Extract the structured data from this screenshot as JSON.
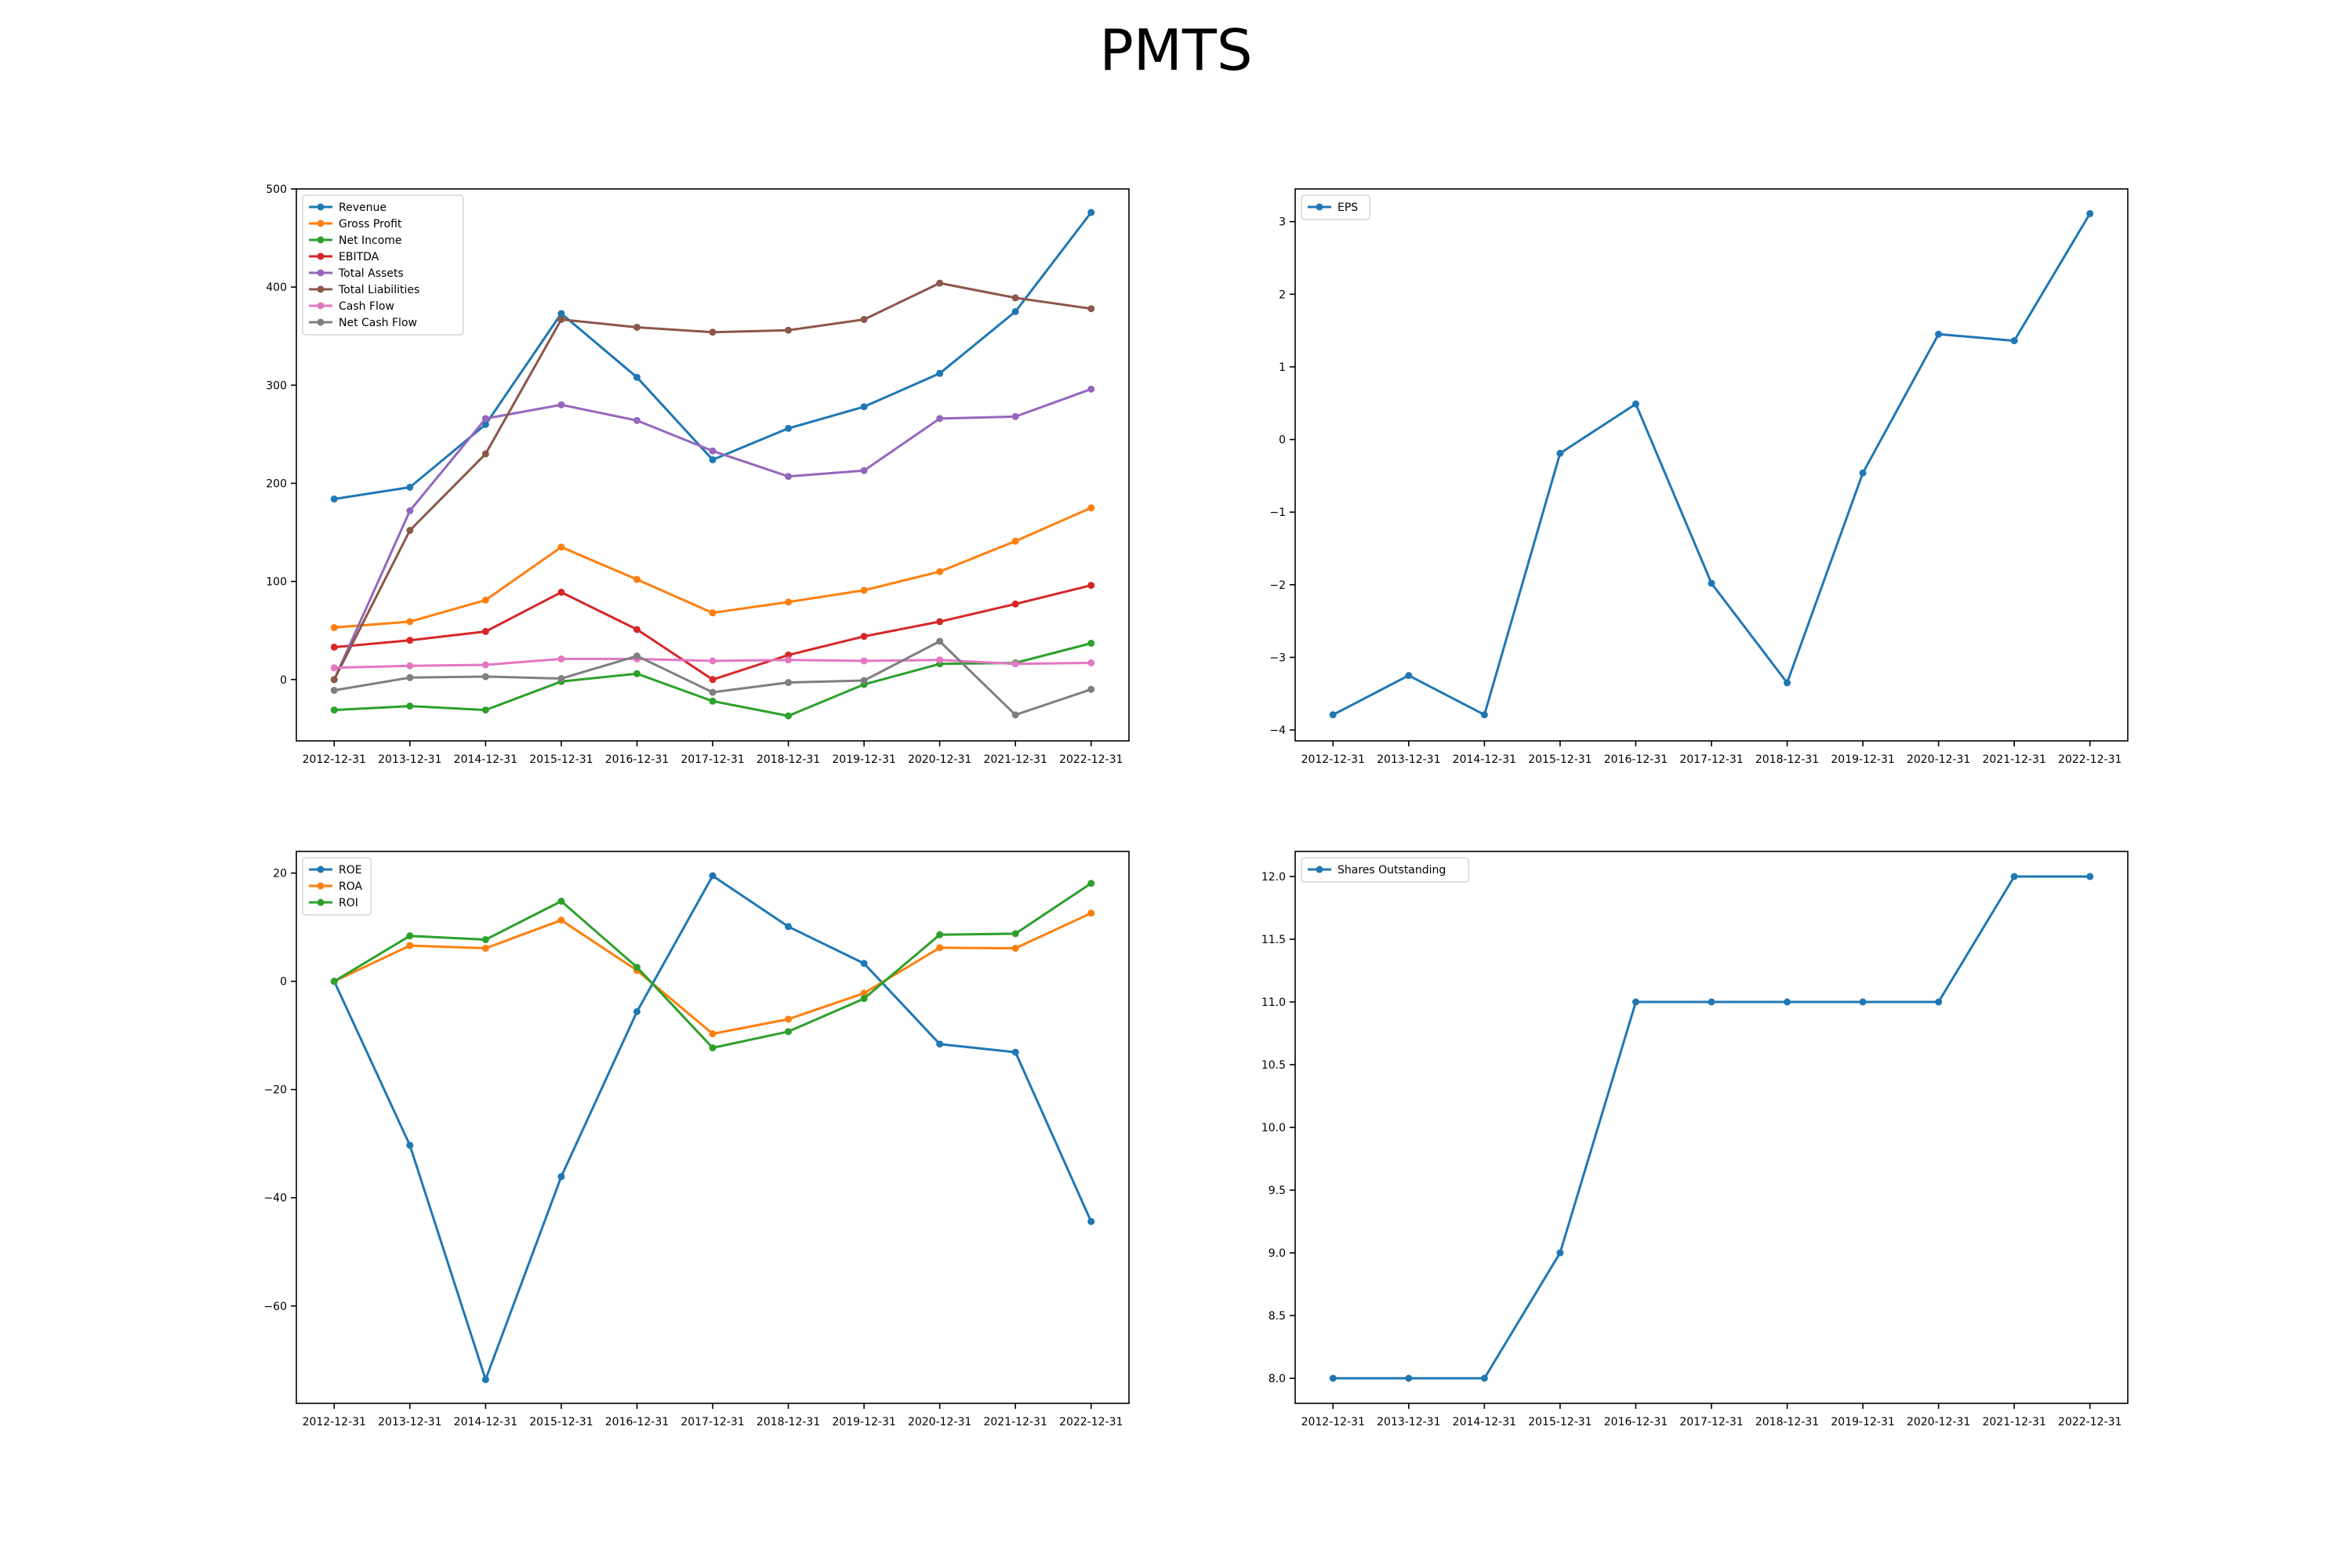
{
  "figure": {
    "title": "PMTS"
  },
  "chart_data": [
    {
      "type": "line",
      "x": [
        "2012-12-31",
        "2013-12-31",
        "2014-12-31",
        "2015-12-31",
        "2016-12-31",
        "2017-12-31",
        "2018-12-31",
        "2019-12-31",
        "2020-12-31",
        "2021-12-31",
        "2022-12-31"
      ],
      "ylim": [
        -62.5,
        500
      ],
      "yticks": [
        0,
        100,
        200,
        300,
        400,
        500
      ],
      "legend": "upper-left",
      "series": [
        {
          "name": "Revenue",
          "color": "#1f77b4",
          "values": [
            184,
            196,
            260,
            373,
            308,
            224,
            256,
            278,
            312,
            375,
            476
          ]
        },
        {
          "name": "Gross Profit",
          "color": "#ff7f0e",
          "values": [
            53,
            59,
            81,
            135,
            102,
            68,
            79,
            91,
            110,
            141,
            175
          ]
        },
        {
          "name": "Net Income",
          "color": "#2ca02c",
          "values": [
            -31,
            -27,
            -31,
            -2,
            6,
            -22,
            -37,
            -5,
            16,
            17,
            37
          ]
        },
        {
          "name": "EBITDA",
          "color": "#d62728",
          "values": [
            33,
            40,
            49,
            89,
            51,
            0,
            25,
            44,
            59,
            77,
            96
          ]
        },
        {
          "name": "Total Assets",
          "color": "#9467bd",
          "values": [
            0,
            172,
            266,
            280,
            264,
            233,
            207,
            213,
            266,
            268,
            296
          ]
        },
        {
          "name": "Total Liabilities",
          "color": "#8c564b",
          "values": [
            0,
            152,
            230,
            367,
            359,
            354,
            356,
            367,
            404,
            389,
            378
          ]
        },
        {
          "name": "Cash Flow",
          "color": "#e377c2",
          "values": [
            12,
            14,
            15,
            21,
            21,
            19,
            20,
            19,
            20,
            16,
            17
          ]
        },
        {
          "name": "Net Cash Flow",
          "color": "#7f7f7f",
          "values": [
            -11,
            2,
            3,
            1,
            24,
            -13,
            -3,
            -1,
            39,
            -36,
            -10
          ]
        }
      ]
    },
    {
      "type": "line",
      "x": [
        "2012-12-31",
        "2013-12-31",
        "2014-12-31",
        "2015-12-31",
        "2016-12-31",
        "2017-12-31",
        "2018-12-31",
        "2019-12-31",
        "2020-12-31",
        "2021-12-31",
        "2022-12-31"
      ],
      "ylim": [
        -4.15,
        3.45
      ],
      "yticks": [
        -4,
        -3,
        -2,
        -1,
        0,
        1,
        2,
        3
      ],
      "legend": "upper-left",
      "series": [
        {
          "name": "EPS",
          "color": "#1f77b4",
          "values": [
            -3.79,
            -3.25,
            -3.79,
            -0.19,
            0.49,
            -1.98,
            -3.35,
            -0.46,
            1.45,
            1.36,
            3.11
          ]
        }
      ]
    },
    {
      "type": "line",
      "x": [
        "2012-12-31",
        "2013-12-31",
        "2014-12-31",
        "2015-12-31",
        "2016-12-31",
        "2017-12-31",
        "2018-12-31",
        "2019-12-31",
        "2020-12-31",
        "2021-12-31",
        "2022-12-31"
      ],
      "ylim": [
        -78,
        24
      ],
      "yticks": [
        -60,
        -40,
        -20,
        0,
        20
      ],
      "legend": "upper-left",
      "series": [
        {
          "name": "ROE",
          "color": "#1f77b4",
          "values": [
            0,
            -30.3,
            -73.6,
            -36.1,
            -5.6,
            19.5,
            10.1,
            3.3,
            -11.6,
            -13.1,
            -44.4
          ]
        },
        {
          "name": "ROA",
          "color": "#ff7f0e",
          "values": [
            0,
            6.6,
            6.1,
            11.3,
            2.0,
            -9.7,
            -7.0,
            -2.2,
            6.2,
            6.1,
            12.6
          ]
        },
        {
          "name": "ROI",
          "color": "#2ca02c",
          "values": [
            0,
            8.4,
            7.7,
            14.8,
            2.6,
            -12.3,
            -9.3,
            -3.2,
            8.6,
            8.8,
            18.1
          ]
        }
      ]
    },
    {
      "type": "line",
      "x": [
        "2012-12-31",
        "2013-12-31",
        "2014-12-31",
        "2015-12-31",
        "2016-12-31",
        "2017-12-31",
        "2018-12-31",
        "2019-12-31",
        "2020-12-31",
        "2021-12-31",
        "2022-12-31"
      ],
      "ylim": [
        7.8,
        12.2
      ],
      "yticks": [
        8.0,
        8.5,
        9.0,
        9.5,
        10.0,
        10.5,
        11.0,
        11.5,
        12.0
      ],
      "yticklabels": [
        "8.0",
        "8.5",
        "9.0",
        "9.5",
        "10.0",
        "10.5",
        "11.0",
        "11.5",
        "12.0"
      ],
      "legend": "upper-left",
      "series": [
        {
          "name": "Shares Outstanding",
          "color": "#1f77b4",
          "values": [
            8,
            8,
            8,
            9,
            11,
            11,
            11,
            11,
            11,
            12,
            12
          ]
        }
      ]
    }
  ]
}
